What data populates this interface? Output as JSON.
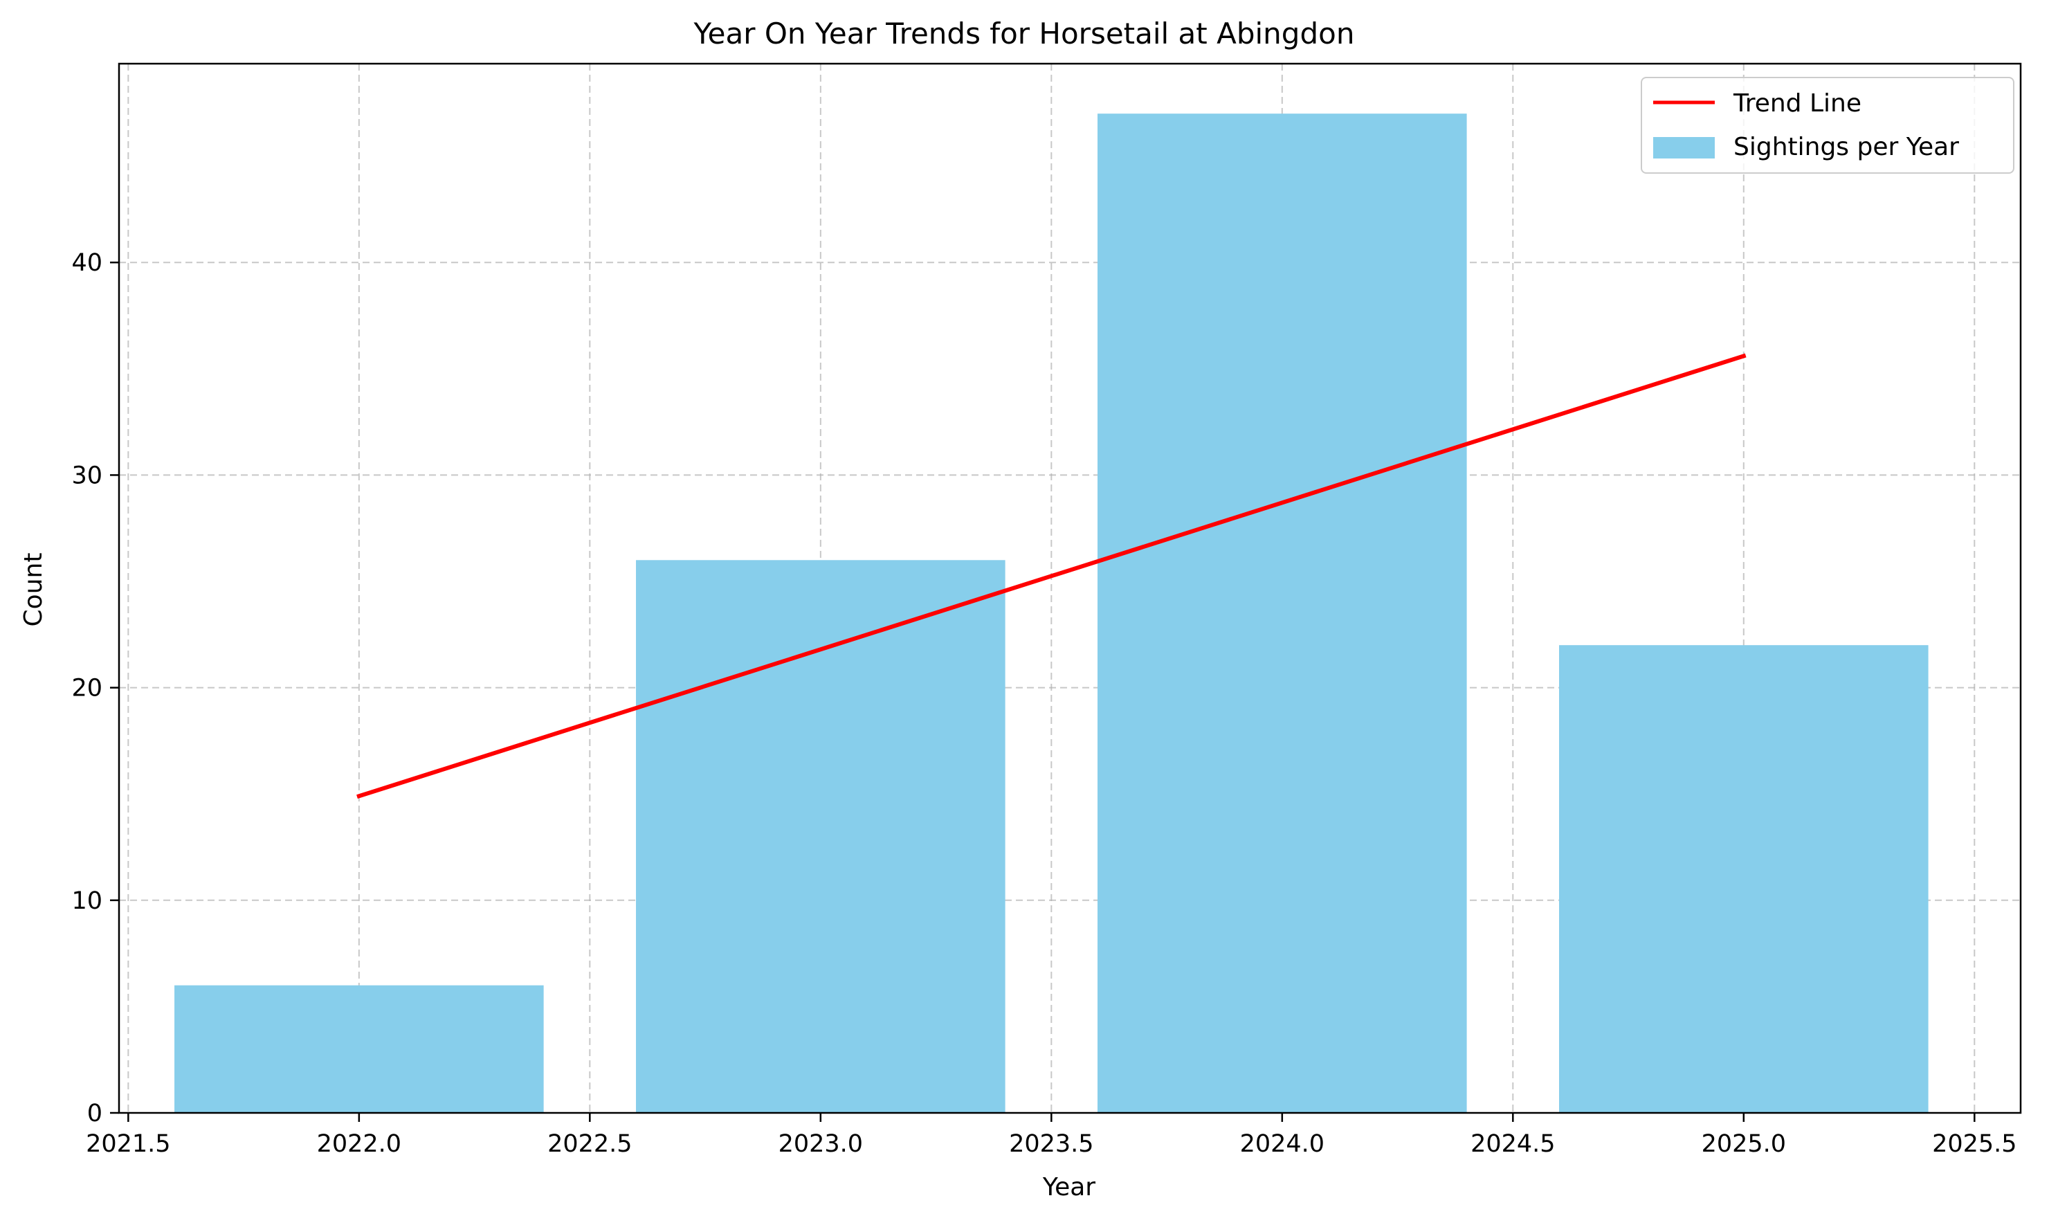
{
  "chart_data": {
    "type": "bar",
    "title": "Year On Year Trends for Horsetail at Abingdon",
    "xlabel": "Year",
    "ylabel": "Count",
    "xlim": [
      2021.48,
      2025.6
    ],
    "ylim": [
      0,
      49.35
    ],
    "x_ticks": [
      2021.5,
      2022.0,
      2022.5,
      2023.0,
      2023.5,
      2024.0,
      2024.5,
      2025.0,
      2025.5
    ],
    "x_tick_labels": [
      "2021.5",
      "2022.0",
      "2022.5",
      "2023.0",
      "2023.5",
      "2024.0",
      "2024.5",
      "2025.0",
      "2025.5"
    ],
    "y_ticks": [
      0,
      10,
      20,
      30,
      40
    ],
    "y_tick_labels": [
      "0",
      "10",
      "20",
      "30",
      "40"
    ],
    "grid": true,
    "legend_position": "top-right",
    "bar_width": 0.8,
    "series": [
      {
        "name": "Sightings per Year",
        "kind": "bar",
        "color": "#87ceeb",
        "x": [
          2022,
          2023,
          2024,
          2025
        ],
        "values": [
          6,
          26,
          47,
          22
        ]
      },
      {
        "name": "Trend Line",
        "kind": "line",
        "color": "#ff0000",
        "x": [
          2022,
          2025
        ],
        "values": [
          14.9,
          35.6
        ]
      }
    ]
  }
}
